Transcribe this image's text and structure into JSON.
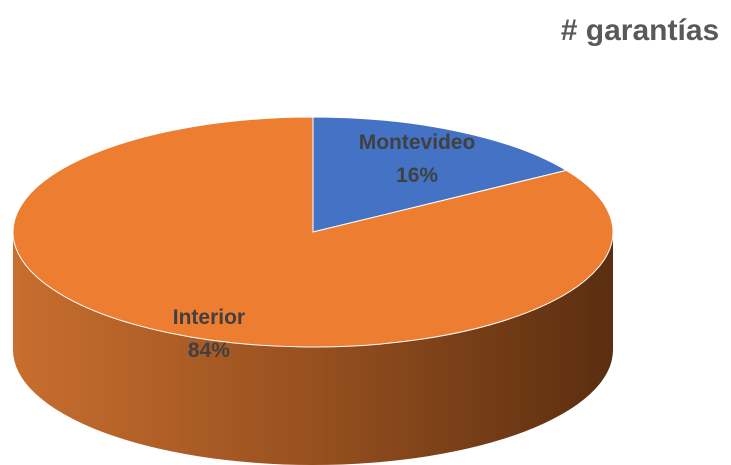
{
  "chart_data": {
    "type": "pie",
    "title": "# garantías",
    "categories": [
      "Montevideo",
      "Interior"
    ],
    "values": [
      16,
      84
    ],
    "value_labels": [
      "16%",
      "84%"
    ],
    "colors": [
      "#4472c4",
      "#ed7d31"
    ]
  }
}
